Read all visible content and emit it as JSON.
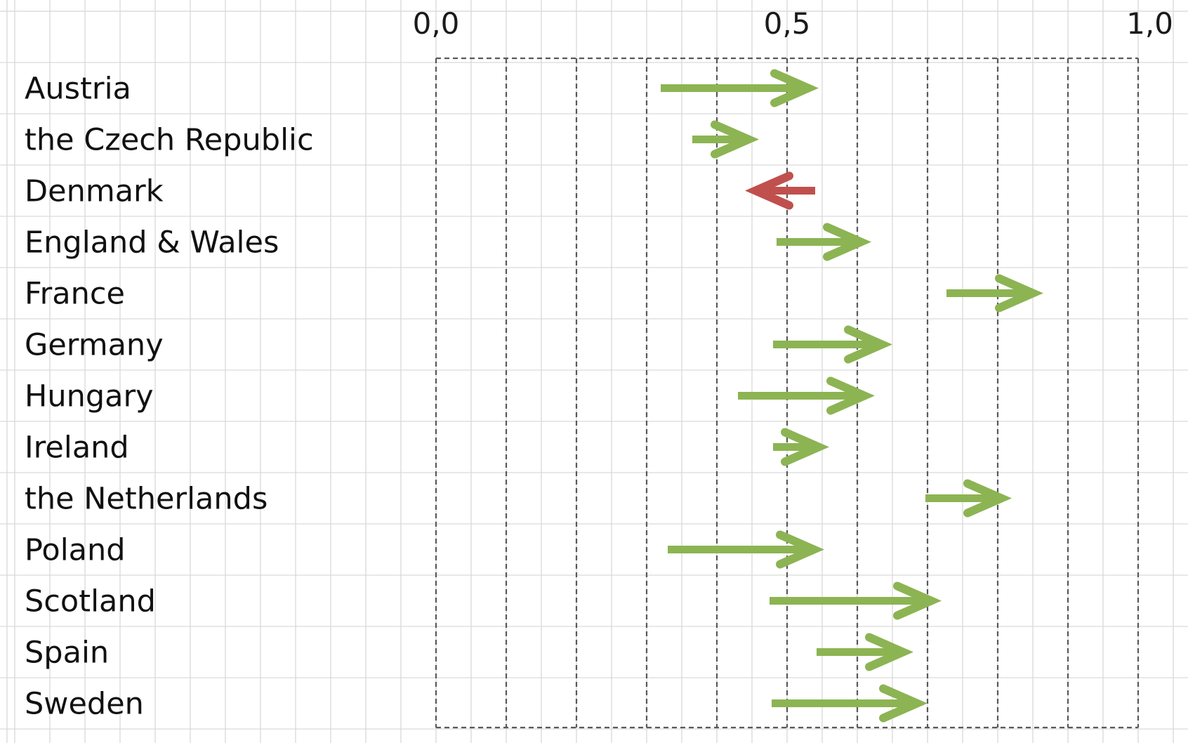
{
  "chart_data": {
    "type": "arrow",
    "x_ticks": [
      {
        "value": 0.0,
        "label": "0,0"
      },
      {
        "value": 0.5,
        "label": "0,5"
      },
      {
        "value": 1.0,
        "label": "1,0"
      }
    ],
    "xlim": [
      0.0,
      1.0
    ],
    "grid": true,
    "increase_color": "#8cb453",
    "decrease_color": "#c0504d",
    "rows": [
      {
        "label": "Austria",
        "from": 0.32,
        "to": 0.53
      },
      {
        "label": "the Czech Republic",
        "from": 0.365,
        "to": 0.445
      },
      {
        "label": "Denmark",
        "from": 0.54,
        "to": 0.455
      },
      {
        "label": "England & Wales",
        "from": 0.485,
        "to": 0.605
      },
      {
        "label": "France",
        "from": 0.727,
        "to": 0.85
      },
      {
        "label": "Germany",
        "from": 0.48,
        "to": 0.635
      },
      {
        "label": "Hungary",
        "from": 0.43,
        "to": 0.61
      },
      {
        "label": "Ireland",
        "from": 0.48,
        "to": 0.545
      },
      {
        "label": "the Netherlands",
        "from": 0.697,
        "to": 0.805
      },
      {
        "label": "Poland",
        "from": 0.33,
        "to": 0.538
      },
      {
        "label": "Scotland",
        "from": 0.475,
        "to": 0.705
      },
      {
        "label": "Spain",
        "from": 0.542,
        "to": 0.665
      },
      {
        "label": "Sweden",
        "from": 0.478,
        "to": 0.685
      }
    ]
  }
}
